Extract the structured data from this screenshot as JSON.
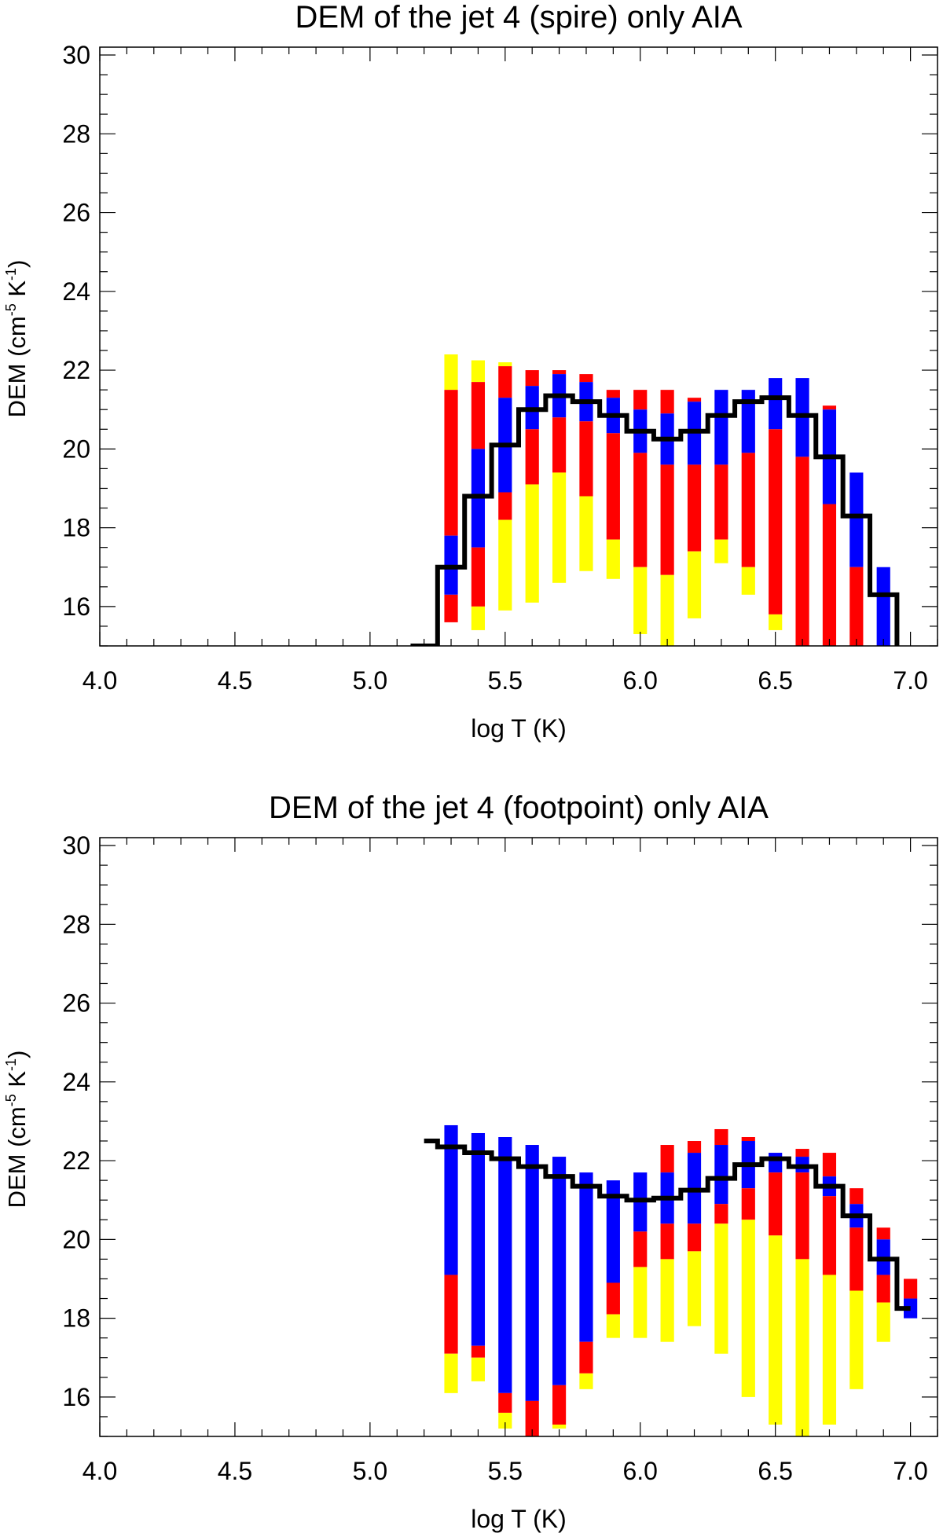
{
  "chart_data": [
    {
      "type": "bar",
      "title": "DEM of the jet 4 (spire) only AIA",
      "xlabel": "log T (K)",
      "ylabel_main": "DEM (cm",
      "ylabel_sup1": "-5",
      "ylabel_mid": " K",
      "ylabel_sup2": "-1",
      "ylabel_end": ")",
      "xlim": [
        4.0,
        7.1
      ],
      "ylim": [
        15,
        30.2
      ],
      "xticks": [
        "4.0",
        "4.5",
        "5.0",
        "5.5",
        "6.0",
        "6.5",
        "7.0"
      ],
      "yticks": [
        "16",
        "18",
        "20",
        "22",
        "24",
        "26",
        "28",
        "30"
      ],
      "bars": [
        {
          "x": 5.3,
          "segments": [
            {
              "color": "yellow",
              "from": 21.5,
              "to": 22.4
            },
            {
              "color": "red",
              "from": 17.8,
              "to": 21.5
            },
            {
              "color": "blue",
              "from": 16.3,
              "to": 17.8
            },
            {
              "color": "red",
              "from": 15.6,
              "to": 16.3
            }
          ]
        },
        {
          "x": 5.4,
          "segments": [
            {
              "color": "yellow",
              "from": 21.7,
              "to": 22.25
            },
            {
              "color": "red",
              "from": 20.0,
              "to": 21.7
            },
            {
              "color": "blue",
              "from": 17.5,
              "to": 20.0
            },
            {
              "color": "red",
              "from": 16.0,
              "to": 17.5
            },
            {
              "color": "yellow",
              "from": 15.4,
              "to": 16.0
            }
          ]
        },
        {
          "x": 5.5,
          "segments": [
            {
              "color": "yellow",
              "from": 22.1,
              "to": 22.2
            },
            {
              "color": "red",
              "from": 21.3,
              "to": 22.1
            },
            {
              "color": "blue",
              "from": 18.9,
              "to": 21.3
            },
            {
              "color": "red",
              "from": 18.2,
              "to": 18.9
            },
            {
              "color": "yellow",
              "from": 15.9,
              "to": 18.2
            }
          ]
        },
        {
          "x": 5.6,
          "segments": [
            {
              "color": "red",
              "from": 21.6,
              "to": 22.0
            },
            {
              "color": "blue",
              "from": 20.5,
              "to": 21.6
            },
            {
              "color": "red",
              "from": 19.1,
              "to": 20.5
            },
            {
              "color": "yellow",
              "from": 16.1,
              "to": 19.1
            }
          ]
        },
        {
          "x": 5.7,
          "segments": [
            {
              "color": "red",
              "from": 21.9,
              "to": 22.0
            },
            {
              "color": "blue",
              "from": 20.8,
              "to": 21.9
            },
            {
              "color": "red",
              "from": 19.4,
              "to": 20.8
            },
            {
              "color": "yellow",
              "from": 16.6,
              "to": 19.4
            }
          ]
        },
        {
          "x": 5.8,
          "segments": [
            {
              "color": "red",
              "from": 21.7,
              "to": 21.9
            },
            {
              "color": "blue",
              "from": 20.7,
              "to": 21.7
            },
            {
              "color": "red",
              "from": 18.8,
              "to": 20.7
            },
            {
              "color": "yellow",
              "from": 16.9,
              "to": 18.8
            }
          ]
        },
        {
          "x": 5.9,
          "segments": [
            {
              "color": "red",
              "from": 21.3,
              "to": 21.5
            },
            {
              "color": "blue",
              "from": 20.4,
              "to": 21.3
            },
            {
              "color": "red",
              "from": 17.7,
              "to": 20.4
            },
            {
              "color": "yellow",
              "from": 16.7,
              "to": 17.7
            }
          ]
        },
        {
          "x": 6.0,
          "segments": [
            {
              "color": "red",
              "from": 21.0,
              "to": 21.5
            },
            {
              "color": "blue",
              "from": 19.9,
              "to": 21.0
            },
            {
              "color": "red",
              "from": 17.0,
              "to": 19.9
            },
            {
              "color": "yellow",
              "from": 15.3,
              "to": 17.0
            }
          ]
        },
        {
          "x": 6.1,
          "segments": [
            {
              "color": "red",
              "from": 20.9,
              "to": 21.5
            },
            {
              "color": "blue",
              "from": 19.6,
              "to": 20.9
            },
            {
              "color": "red",
              "from": 16.8,
              "to": 19.6
            },
            {
              "color": "yellow",
              "from": 15.0,
              "to": 16.8
            }
          ]
        },
        {
          "x": 6.2,
          "segments": [
            {
              "color": "red",
              "from": 21.2,
              "to": 21.3
            },
            {
              "color": "blue",
              "from": 19.6,
              "to": 21.2
            },
            {
              "color": "red",
              "from": 17.4,
              "to": 19.6
            },
            {
              "color": "yellow",
              "from": 15.7,
              "to": 17.4
            }
          ]
        },
        {
          "x": 6.3,
          "segments": [
            {
              "color": "blue",
              "from": 19.6,
              "to": 21.5
            },
            {
              "color": "red",
              "from": 17.7,
              "to": 19.6
            },
            {
              "color": "yellow",
              "from": 17.1,
              "to": 17.7
            }
          ]
        },
        {
          "x": 6.4,
          "segments": [
            {
              "color": "blue",
              "from": 19.9,
              "to": 21.5
            },
            {
              "color": "red",
              "from": 17.0,
              "to": 19.9
            },
            {
              "color": "yellow",
              "from": 16.3,
              "to": 17.0
            }
          ]
        },
        {
          "x": 6.5,
          "segments": [
            {
              "color": "blue",
              "from": 20.5,
              "to": 21.8
            },
            {
              "color": "red",
              "from": 15.8,
              "to": 20.5
            },
            {
              "color": "yellow",
              "from": 15.4,
              "to": 15.8
            }
          ]
        },
        {
          "x": 6.6,
          "segments": [
            {
              "color": "blue",
              "from": 19.8,
              "to": 21.8
            },
            {
              "color": "red",
              "from": 15.0,
              "to": 19.8
            }
          ]
        },
        {
          "x": 6.7,
          "segments": [
            {
              "color": "red",
              "from": 21.0,
              "to": 21.1
            },
            {
              "color": "blue",
              "from": 18.6,
              "to": 21.0
            },
            {
              "color": "red",
              "from": 15.0,
              "to": 18.6
            }
          ]
        },
        {
          "x": 6.8,
          "segments": [
            {
              "color": "blue",
              "from": 17.0,
              "to": 19.4
            },
            {
              "color": "red",
              "from": 15.0,
              "to": 17.0
            }
          ]
        },
        {
          "x": 6.9,
          "segments": [
            {
              "color": "blue",
              "from": 15.0,
              "to": 17.0
            }
          ]
        }
      ],
      "dem_line": {
        "color": "black",
        "x": [
          5.15,
          5.25,
          5.35,
          5.45,
          5.55,
          5.65,
          5.75,
          5.85,
          5.95,
          6.05,
          6.15,
          6.25,
          6.35,
          6.45,
          6.55,
          6.65,
          6.75,
          6.85,
          6.95
        ],
        "y": [
          15.0,
          17.0,
          18.8,
          20.1,
          21.0,
          21.35,
          21.2,
          20.85,
          20.45,
          20.25,
          20.45,
          20.85,
          21.2,
          21.3,
          20.85,
          19.8,
          18.3,
          16.3,
          15.0
        ]
      }
    },
    {
      "type": "bar",
      "title": "DEM of the jet 4 (footpoint) only AIA",
      "xlabel": "log T (K)",
      "ylabel_main": "DEM (cm",
      "ylabel_sup1": "-5",
      "ylabel_mid": " K",
      "ylabel_sup2": "-1",
      "ylabel_end": ")",
      "xlim": [
        4.0,
        7.1
      ],
      "ylim": [
        15,
        30.2
      ],
      "xticks": [
        "4.0",
        "4.5",
        "5.0",
        "5.5",
        "6.0",
        "6.5",
        "7.0"
      ],
      "yticks": [
        "16",
        "18",
        "20",
        "22",
        "24",
        "26",
        "28",
        "30"
      ],
      "bars": [
        {
          "x": 5.3,
          "segments": [
            {
              "color": "blue",
              "from": 19.1,
              "to": 22.9
            },
            {
              "color": "red",
              "from": 17.1,
              "to": 19.1
            },
            {
              "color": "yellow",
              "from": 16.1,
              "to": 17.1
            }
          ]
        },
        {
          "x": 5.4,
          "segments": [
            {
              "color": "blue",
              "from": 17.3,
              "to": 22.7
            },
            {
              "color": "red",
              "from": 17.0,
              "to": 17.3
            },
            {
              "color": "yellow",
              "from": 16.4,
              "to": 17.0
            }
          ]
        },
        {
          "x": 5.5,
          "segments": [
            {
              "color": "blue",
              "from": 16.1,
              "to": 22.6
            },
            {
              "color": "red",
              "from": 15.6,
              "to": 16.1
            },
            {
              "color": "yellow",
              "from": 15.2,
              "to": 15.6
            }
          ]
        },
        {
          "x": 5.6,
          "segments": [
            {
              "color": "blue",
              "from": 15.9,
              "to": 22.4
            },
            {
              "color": "red",
              "from": 15.0,
              "to": 15.9
            }
          ]
        },
        {
          "x": 5.7,
          "segments": [
            {
              "color": "blue",
              "from": 16.3,
              "to": 22.1
            },
            {
              "color": "red",
              "from": 15.3,
              "to": 16.3
            },
            {
              "color": "yellow",
              "from": 15.2,
              "to": 15.3
            }
          ]
        },
        {
          "x": 5.8,
          "segments": [
            {
              "color": "blue",
              "from": 17.4,
              "to": 21.7
            },
            {
              "color": "red",
              "from": 16.6,
              "to": 17.4
            },
            {
              "color": "yellow",
              "from": 16.2,
              "to": 16.6
            }
          ]
        },
        {
          "x": 5.9,
          "segments": [
            {
              "color": "blue",
              "from": 18.9,
              "to": 21.5
            },
            {
              "color": "red",
              "from": 18.1,
              "to": 18.9
            },
            {
              "color": "yellow",
              "from": 17.5,
              "to": 18.1
            }
          ]
        },
        {
          "x": 6.0,
          "segments": [
            {
              "color": "blue",
              "from": 20.2,
              "to": 21.7
            },
            {
              "color": "red",
              "from": 19.3,
              "to": 20.2
            },
            {
              "color": "yellow",
              "from": 17.5,
              "to": 19.3
            }
          ]
        },
        {
          "x": 6.1,
          "segments": [
            {
              "color": "red",
              "from": 21.7,
              "to": 22.4
            },
            {
              "color": "blue",
              "from": 20.4,
              "to": 21.7
            },
            {
              "color": "red",
              "from": 19.5,
              "to": 20.4
            },
            {
              "color": "yellow",
              "from": 17.4,
              "to": 19.5
            }
          ]
        },
        {
          "x": 6.2,
          "segments": [
            {
              "color": "red",
              "from": 22.2,
              "to": 22.5
            },
            {
              "color": "blue",
              "from": 20.4,
              "to": 22.2
            },
            {
              "color": "red",
              "from": 19.7,
              "to": 20.4
            },
            {
              "color": "yellow",
              "from": 17.8,
              "to": 19.7
            }
          ]
        },
        {
          "x": 6.3,
          "segments": [
            {
              "color": "red",
              "from": 22.4,
              "to": 22.8
            },
            {
              "color": "blue",
              "from": 20.9,
              "to": 22.4
            },
            {
              "color": "red",
              "from": 20.4,
              "to": 20.9
            },
            {
              "color": "yellow",
              "from": 17.1,
              "to": 20.4
            }
          ]
        },
        {
          "x": 6.4,
          "segments": [
            {
              "color": "red",
              "from": 22.5,
              "to": 22.6
            },
            {
              "color": "blue",
              "from": 21.3,
              "to": 22.5
            },
            {
              "color": "red",
              "from": 20.5,
              "to": 21.3
            },
            {
              "color": "yellow",
              "from": 16.0,
              "to": 20.5
            }
          ]
        },
        {
          "x": 6.5,
          "segments": [
            {
              "color": "blue",
              "from": 21.7,
              "to": 22.2
            },
            {
              "color": "red",
              "from": 20.1,
              "to": 21.7
            },
            {
              "color": "yellow",
              "from": 15.3,
              "to": 20.1
            }
          ]
        },
        {
          "x": 6.6,
          "segments": [
            {
              "color": "red",
              "from": 22.1,
              "to": 22.3
            },
            {
              "color": "blue",
              "from": 21.7,
              "to": 22.1
            },
            {
              "color": "red",
              "from": 19.5,
              "to": 21.7
            },
            {
              "color": "yellow",
              "from": 15.0,
              "to": 19.5
            }
          ]
        },
        {
          "x": 6.7,
          "segments": [
            {
              "color": "red",
              "from": 21.6,
              "to": 22.2
            },
            {
              "color": "blue",
              "from": 21.1,
              "to": 21.6
            },
            {
              "color": "red",
              "from": 19.1,
              "to": 21.1
            },
            {
              "color": "yellow",
              "from": 15.3,
              "to": 19.1
            }
          ]
        },
        {
          "x": 6.8,
          "segments": [
            {
              "color": "red",
              "from": 20.9,
              "to": 21.3
            },
            {
              "color": "blue",
              "from": 20.3,
              "to": 20.9
            },
            {
              "color": "red",
              "from": 18.7,
              "to": 20.3
            },
            {
              "color": "yellow",
              "from": 16.2,
              "to": 18.7
            }
          ]
        },
        {
          "x": 6.9,
          "segments": [
            {
              "color": "red",
              "from": 20.0,
              "to": 20.3
            },
            {
              "color": "blue",
              "from": 19.1,
              "to": 20.0
            },
            {
              "color": "red",
              "from": 18.4,
              "to": 19.1
            },
            {
              "color": "yellow",
              "from": 17.4,
              "to": 18.4
            }
          ]
        },
        {
          "x": 7.0,
          "segments": [
            {
              "color": "red",
              "from": 18.5,
              "to": 19.0
            },
            {
              "color": "blue",
              "from": 18.0,
              "to": 18.5
            }
          ]
        }
      ],
      "dem_line": {
        "color": "black",
        "x": [
          5.2,
          5.25,
          5.35,
          5.45,
          5.55,
          5.65,
          5.75,
          5.85,
          5.95,
          6.05,
          6.15,
          6.25,
          6.35,
          6.45,
          6.55,
          6.65,
          6.75,
          6.85,
          6.95,
          7.0
        ],
        "y": [
          22.5,
          22.35,
          22.2,
          22.05,
          21.85,
          21.6,
          21.35,
          21.1,
          21.0,
          21.05,
          21.25,
          21.55,
          21.9,
          22.05,
          21.85,
          21.35,
          20.6,
          19.5,
          18.25,
          18.25
        ]
      }
    }
  ],
  "colors": {
    "yellow": "#ffff00",
    "red": "#ff0000",
    "blue": "#0000ff",
    "black": "#000000"
  }
}
